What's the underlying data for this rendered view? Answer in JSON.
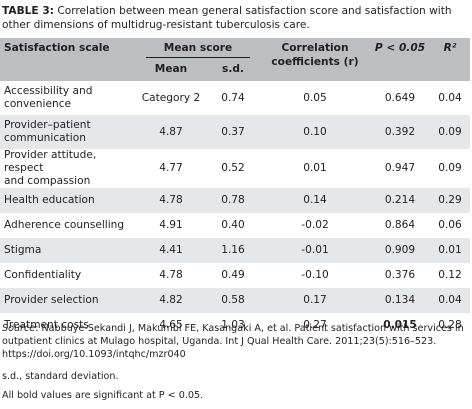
{
  "caption": {
    "label": "TABLE 3:",
    "text": " Correlation between mean general satisfaction score and satisfaction with other dimensions of multidrug-resistant tuberculosis care."
  },
  "headers": {
    "scale": "Satisfaction scale",
    "mean_score": "Mean score",
    "mean": "Mean",
    "sd": "s.d.",
    "corr_line1": "Correlation",
    "corr_line2": "coefficients (r)",
    "p": "P < 0.05",
    "r2": "R²"
  },
  "rows": [
    {
      "scale_line1": "Accessibility and",
      "scale_line2": "convenience",
      "mean": "Category 2",
      "sd": "0.74",
      "r": "0.05",
      "p": "0.649",
      "r2": "0.04"
    },
    {
      "scale_line1": "Provider–patient",
      "scale_line2": "communication",
      "mean": "4.87",
      "sd": "0.37",
      "r": "0.10",
      "p": "0.392",
      "r2": "0.09"
    },
    {
      "scale_line1": "Provider attitude, respect",
      "scale_line2": "and compassion",
      "mean": "4.77",
      "sd": "0.52",
      "r": "0.01",
      "p": "0.947",
      "r2": "0.09"
    },
    {
      "scale_line1": "Health education",
      "mean": "4.78",
      "sd": "0.78",
      "r": "0.14",
      "p": "0.214",
      "r2": "0.29"
    },
    {
      "scale_line1": "Adherence counselling",
      "mean": "4.91",
      "sd": "0.40",
      "r": "-0.02",
      "p": "0.864",
      "r2": "0.06"
    },
    {
      "scale_line1": "Stigma",
      "mean": "4.41",
      "sd": "1.16",
      "r": "-0.01",
      "p": "0.909",
      "r2": "0.01"
    },
    {
      "scale_line1": "Confidentiality",
      "mean": "4.78",
      "sd": "0.49",
      "r": "-0.10",
      "p": "0.376",
      "r2": "0.12"
    },
    {
      "scale_line1": "Provider selection",
      "mean": "4.82",
      "sd": "0.58",
      "r": "0.17",
      "p": "0.134",
      "r2": "0.04"
    },
    {
      "scale_line1": "Treatment costs",
      "mean": "4.65",
      "sd": "1.03",
      "r": "0.27",
      "p": "0.015",
      "r2": "0.28"
    }
  ],
  "footnotes": {
    "source_label": "Source",
    "source_text": ": Nabbuye-Sekandi J, Makumbi FE, Kasangaki A, et al. Patient satisfaction with services in outpatient clinics at Mulago hospital, Uganda. Int J Qual Health Care. 2011;23(5):516–523. https://doi.org/10.1093/intqhc/mzr040",
    "sd_note": "s.d., standard deviation.",
    "bold_note": "All bold values are significant at P < 0.05."
  }
}
